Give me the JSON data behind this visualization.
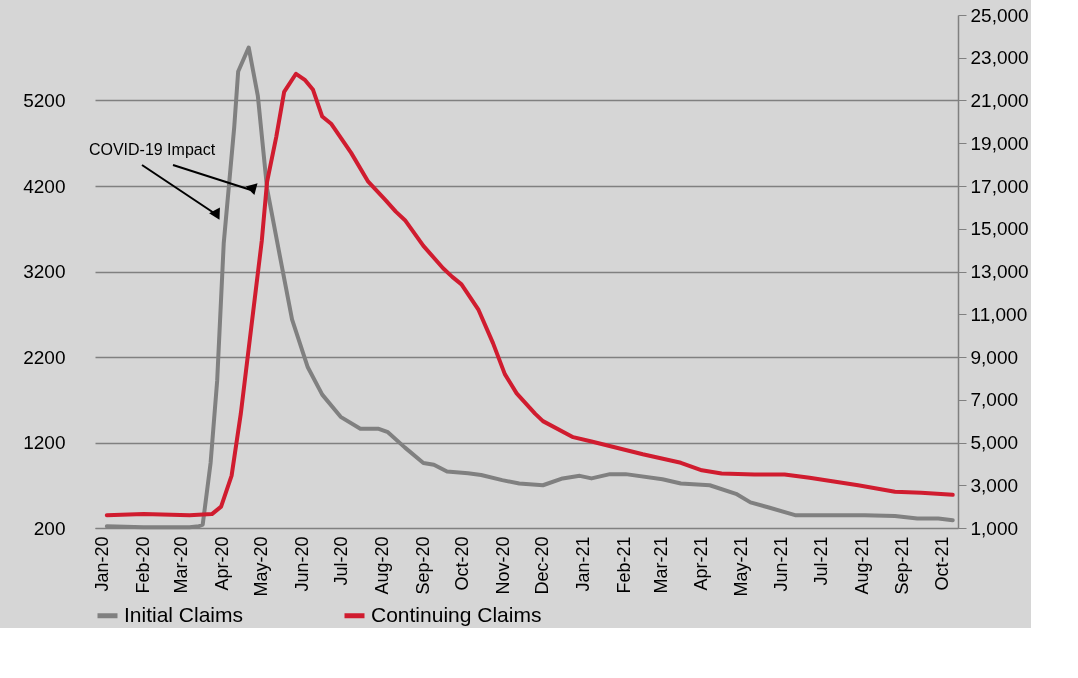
{
  "chart_data": {
    "type": "line",
    "annotations": [
      "COVID-19 Impact"
    ],
    "xlim": [
      "2019-12-26",
      "2021-10-13"
    ],
    "xticks": [
      {
        "value": "2020-01-01",
        "label": "Jan-20"
      },
      {
        "value": "2020-02-01",
        "label": "Feb-20"
      },
      {
        "value": "2020-03-01",
        "label": "Mar-20"
      },
      {
        "value": "2020-04-01",
        "label": "Apr-20"
      },
      {
        "value": "2020-05-01",
        "label": "May-20"
      },
      {
        "value": "2020-06-01",
        "label": "Jun-20"
      },
      {
        "value": "2020-07-01",
        "label": "Jul-20"
      },
      {
        "value": "2020-08-01",
        "label": "Aug-20"
      },
      {
        "value": "2020-09-01",
        "label": "Sep-20"
      },
      {
        "value": "2020-10-01",
        "label": "Oct-20"
      },
      {
        "value": "2020-11-01",
        "label": "Nov-20"
      },
      {
        "value": "2020-12-01",
        "label": "Dec-20"
      },
      {
        "value": "2021-01-01",
        "label": "Jan-21"
      },
      {
        "value": "2021-02-01",
        "label": "Feb-21"
      },
      {
        "value": "2021-03-01",
        "label": "Mar-21"
      },
      {
        "value": "2021-04-01",
        "label": "Apr-21"
      },
      {
        "value": "2021-05-01",
        "label": "May-21"
      },
      {
        "value": "2021-06-01",
        "label": "Jun-21"
      },
      {
        "value": "2021-07-01",
        "label": "Jul-21"
      },
      {
        "value": "2021-08-01",
        "label": "Aug-21"
      },
      {
        "value": "2021-09-01",
        "label": "Sep-21"
      },
      {
        "value": "2021-10-01",
        "label": "Oct-21"
      }
    ],
    "ylim": [
      200,
      6200
    ],
    "yticks": [
      200,
      1200,
      2200,
      3200,
      4200,
      5200
    ],
    "y2lim": [
      1000,
      25000
    ],
    "y2ticks": [
      {
        "value": 1000,
        "label": "1,000"
      },
      {
        "value": 3000,
        "label": "3,000"
      },
      {
        "value": 5000,
        "label": "5,000"
      },
      {
        "value": 7000,
        "label": "7,000"
      },
      {
        "value": 9000,
        "label": "9,000"
      },
      {
        "value": 11000,
        "label": "11,000"
      },
      {
        "value": 13000,
        "label": "13,000"
      },
      {
        "value": 15000,
        "label": "15,000"
      },
      {
        "value": 17000,
        "label": "17,000"
      },
      {
        "value": 19000,
        "label": "19,000"
      },
      {
        "value": 21000,
        "label": "21,000"
      },
      {
        "value": 23000,
        "label": "23,000"
      },
      {
        "value": 25000,
        "label": "25,000"
      }
    ],
    "grid": "y",
    "legend": "bottom",
    "marker": "none",
    "line_style": "solid",
    "series": [
      {
        "name": "Initial Claims",
        "color": "#808080",
        "x": [
          "2020-01-04",
          "2020-02-01",
          "2020-03-07",
          "2020-03-14",
          "2020-03-17",
          "2020-03-23",
          "2020-03-28",
          "2020-04-02",
          "2020-04-10",
          "2020-04-13",
          "2020-04-21",
          "2020-04-28",
          "2020-05-05",
          "2020-05-14",
          "2020-05-24",
          "2020-06-05",
          "2020-06-16",
          "2020-06-30",
          "2020-07-15",
          "2020-07-29",
          "2020-08-05",
          "2020-08-18",
          "2020-09-01",
          "2020-09-09",
          "2020-09-19",
          "2020-10-05",
          "2020-10-15",
          "2020-10-31",
          "2020-11-13",
          "2020-12-01",
          "2020-12-16",
          "2020-12-29",
          "2021-01-07",
          "2021-01-21",
          "2021-02-02",
          "2021-03-02",
          "2021-03-16",
          "2021-04-07",
          "2021-04-27",
          "2021-05-08",
          "2021-05-22",
          "2021-06-11",
          "2021-07-06",
          "2021-08-03",
          "2021-08-26",
          "2021-09-12",
          "2021-09-28",
          "2021-10-09"
        ],
        "values": [
          220,
          210,
          210,
          220,
          240,
          960,
          1920,
          3530,
          4890,
          5540,
          5820,
          5250,
          4170,
          3440,
          2640,
          2080,
          1760,
          1500,
          1360,
          1360,
          1320,
          1140,
          960,
          940,
          860,
          840,
          820,
          760,
          720,
          700,
          780,
          810,
          780,
          830,
          830,
          770,
          720,
          700,
          600,
          500,
          440,
          350,
          350,
          350,
          340,
          310,
          310,
          290
        ]
      },
      {
        "name": "Continuing Claims",
        "color": "#d01c2f",
        "axis": "y2",
        "x": [
          "2020-01-04",
          "2020-02-01",
          "2020-03-07",
          "2020-03-24",
          "2020-03-31",
          "2020-04-08",
          "2020-04-15",
          "2020-04-23",
          "2020-05-01",
          "2020-05-05",
          "2020-05-12",
          "2020-05-18",
          "2020-05-27",
          "2020-06-03",
          "2020-06-09",
          "2020-06-16",
          "2020-06-23",
          "2020-07-08",
          "2020-07-21",
          "2020-08-03",
          "2020-08-11",
          "2020-08-18",
          "2020-09-01",
          "2020-09-16",
          "2020-09-23",
          "2020-09-30",
          "2020-10-13",
          "2020-10-24",
          "2020-11-02",
          "2020-11-11",
          "2020-11-25",
          "2020-12-01",
          "2020-12-24",
          "2021-01-07",
          "2021-02-02",
          "2021-02-15",
          "2021-03-16",
          "2021-04-01",
          "2021-04-16",
          "2021-05-11",
          "2021-06-03",
          "2021-06-22",
          "2021-07-29",
          "2021-08-26",
          "2021-09-15",
          "2021-10-09"
        ],
        "values": [
          1600,
          1650,
          1600,
          1650,
          2000,
          3450,
          6350,
          10400,
          14450,
          17200,
          19300,
          21400,
          22250,
          21950,
          21500,
          20250,
          19900,
          18550,
          17200,
          16350,
          15800,
          15400,
          14200,
          13150,
          12750,
          12400,
          11200,
          9650,
          8200,
          7300,
          6350,
          6000,
          5250,
          5050,
          4650,
          4450,
          4050,
          3700,
          3550,
          3500,
          3500,
          3350,
          3000,
          2700,
          2650,
          2550
        ]
      }
    ]
  }
}
